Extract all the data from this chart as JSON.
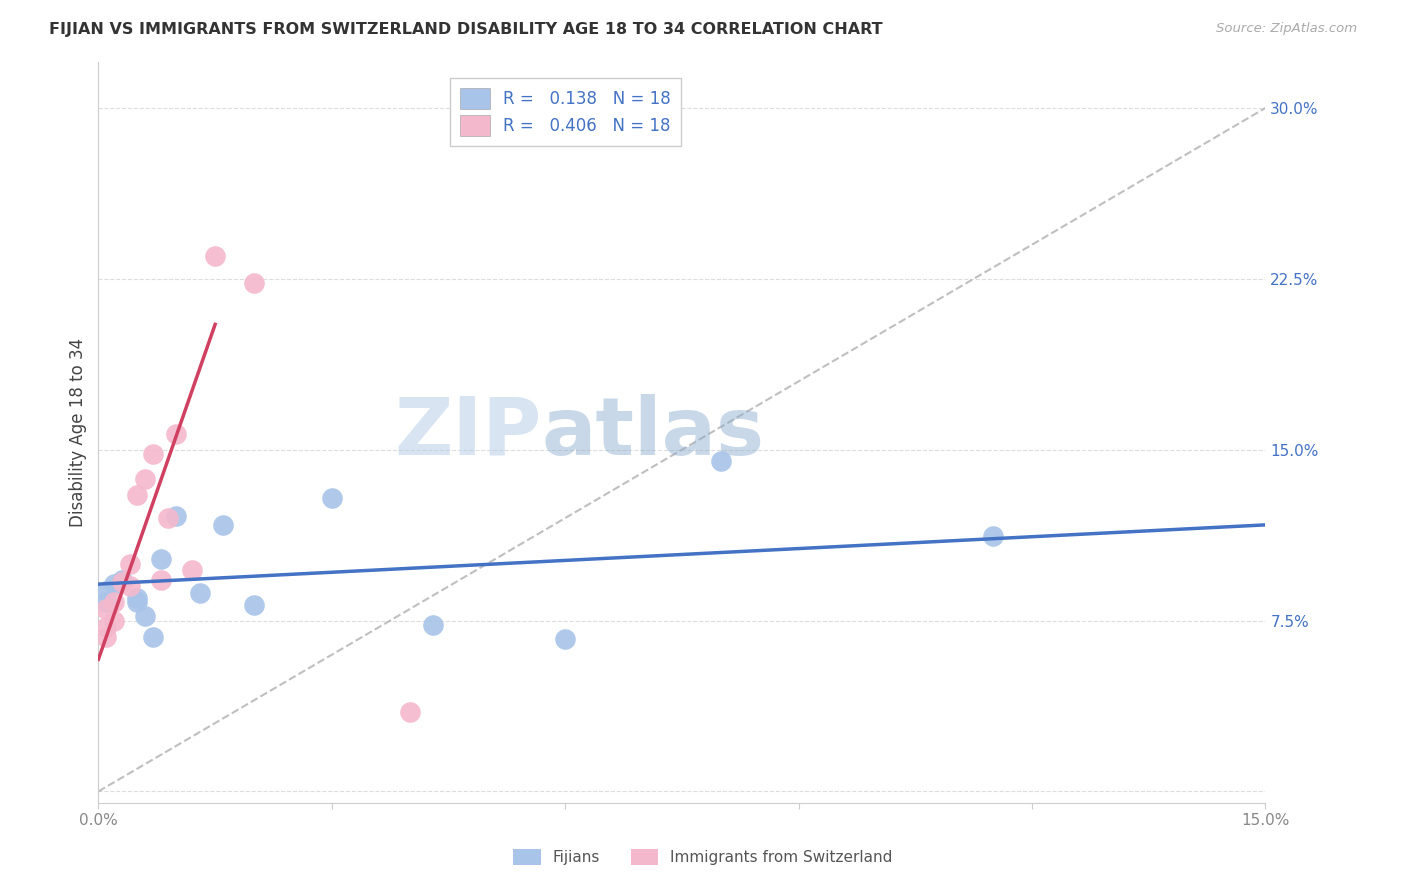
{
  "title": "FIJIAN VS IMMIGRANTS FROM SWITZERLAND DISABILITY AGE 18 TO 34 CORRELATION CHART",
  "source": "Source: ZipAtlas.com",
  "ylabel": "Disability Age 18 to 34",
  "xlim": [
    0.0,
    0.15
  ],
  "ylim": [
    -0.005,
    0.32
  ],
  "xticks": [
    0.0,
    0.03,
    0.06,
    0.09,
    0.12,
    0.15
  ],
  "xtick_labels": [
    "0.0%",
    "",
    "",
    "",
    "",
    "15.0%"
  ],
  "yticks": [
    0.0,
    0.075,
    0.15,
    0.225,
    0.3
  ],
  "ytick_labels": [
    "",
    "7.5%",
    "15.0%",
    "22.5%",
    "30.0%"
  ],
  "legend_r1": "0.138",
  "legend_n1": "18",
  "legend_r2": "0.406",
  "legend_n2": "18",
  "legend_label1": "Fijians",
  "legend_label2": "Immigrants from Switzerland",
  "watermark_zip": "ZIP",
  "watermark_atlas": "atlas",
  "blue_scatter_color": "#a8c4e8",
  "pink_scatter_color": "#f4b8cc",
  "blue_line_color": "#4472c4",
  "pink_line_color": "#d04060",
  "diagonal_color": "#b0b0b0",
  "fijian_x": [
    0.001,
    0.001,
    0.002,
    0.003,
    0.005,
    0.005,
    0.006,
    0.007,
    0.008,
    0.01,
    0.013,
    0.016,
    0.02,
    0.03,
    0.043,
    0.06,
    0.08,
    0.115
  ],
  "fijian_y": [
    0.088,
    0.083,
    0.091,
    0.093,
    0.085,
    0.083,
    0.077,
    0.068,
    0.102,
    0.121,
    0.087,
    0.117,
    0.082,
    0.129,
    0.073,
    0.067,
    0.145,
    0.112
  ],
  "swiss_x": [
    0.001,
    0.001,
    0.001,
    0.002,
    0.002,
    0.003,
    0.004,
    0.004,
    0.005,
    0.006,
    0.007,
    0.008,
    0.009,
    0.01,
    0.012,
    0.015,
    0.02,
    0.04
  ],
  "swiss_y": [
    0.072,
    0.08,
    0.068,
    0.083,
    0.075,
    0.092,
    0.1,
    0.09,
    0.13,
    0.137,
    0.148,
    0.093,
    0.12,
    0.157,
    0.097,
    0.235,
    0.223,
    0.035
  ],
  "pink_line_x0": 0.0,
  "pink_line_y0": 0.058,
  "pink_line_x1": 0.015,
  "pink_line_y1": 0.205,
  "blue_line_x0": 0.0,
  "blue_line_y0": 0.091,
  "blue_line_x1": 0.15,
  "blue_line_y1": 0.117
}
